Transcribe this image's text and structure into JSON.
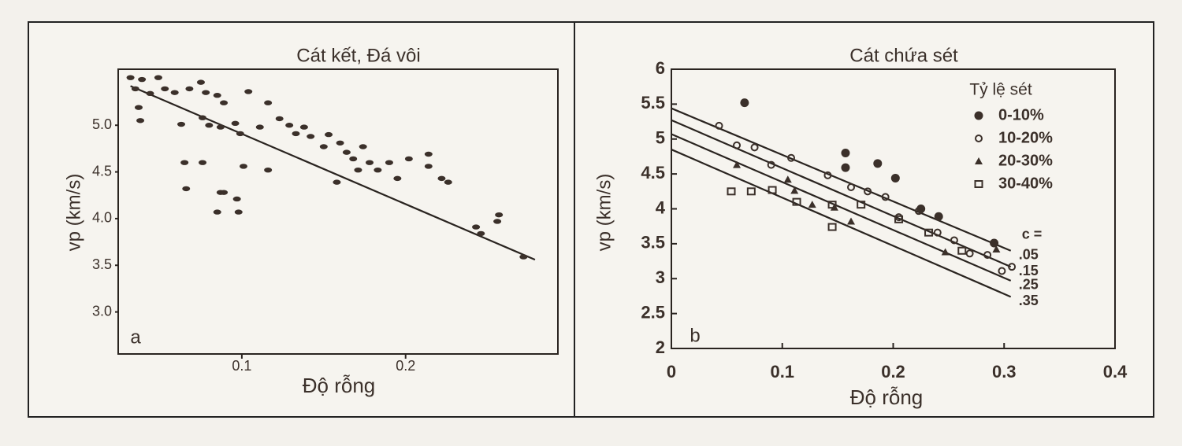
{
  "chart_data": [
    {
      "type": "scatter",
      "title": "Cát kết, Đá vôi",
      "xlabel": "Độ rỗng",
      "ylabel": "vp (km/s)",
      "panel_label": "a",
      "xlim": [
        0.0245,
        0.293
      ],
      "ylim": [
        2.55,
        5.6
      ],
      "xticks": [
        0.1,
        0.2
      ],
      "yticks": [
        {
          "value": 5,
          "label": "5.0"
        },
        {
          "value": 4.5,
          "label": "4.5"
        },
        {
          "value": 4,
          "label": "4.0"
        },
        {
          "value": 3.5,
          "label": "3.5"
        },
        {
          "value": 3,
          "label": "3.0"
        }
      ],
      "color": "#3b302a",
      "series": [
        {
          "marker": "filled-ellipse",
          "x": [
            0.032,
            0.039,
            0.049,
            0.035,
            0.044,
            0.053,
            0.059,
            0.068,
            0.075,
            0.078,
            0.085,
            0.089,
            0.037,
            0.038,
            0.063,
            0.076,
            0.08,
            0.087,
            0.096,
            0.099,
            0.104,
            0.111,
            0.116,
            0.123,
            0.129,
            0.133,
            0.138,
            0.142,
            0.15,
            0.153,
            0.16,
            0.164,
            0.168,
            0.174,
            0.178,
            0.183,
            0.19,
            0.195,
            0.202,
            0.214,
            0.222,
            0.226,
            0.214,
            0.065,
            0.076,
            0.087,
            0.097,
            0.101,
            0.116,
            0.066,
            0.085,
            0.098,
            0.158,
            0.171,
            0.243,
            0.246,
            0.257,
            0.256,
            0.272,
            0.089
          ],
          "values": [
            5.51,
            5.49,
            5.51,
            5.39,
            5.34,
            5.39,
            5.35,
            5.39,
            5.46,
            5.35,
            5.32,
            5.24,
            5.19,
            5.05,
            5.01,
            5.08,
            5.0,
            4.98,
            5.02,
            4.91,
            5.36,
            4.98,
            5.24,
            5.07,
            5.0,
            4.91,
            4.98,
            4.88,
            4.77,
            4.9,
            4.81,
            4.71,
            4.64,
            4.77,
            4.6,
            4.52,
            4.6,
            4.43,
            4.64,
            4.69,
            4.43,
            4.39,
            4.56,
            4.6,
            4.6,
            4.28,
            4.21,
            4.56,
            4.52,
            4.32,
            4.07,
            4.07,
            4.39,
            4.52,
            3.91,
            3.84,
            4.04,
            3.97,
            3.59,
            4.28
          ]
        }
      ],
      "lines": [
        {
          "x": [
            0.032,
            0.279
          ],
          "values": [
            5.42,
            3.56
          ]
        }
      ]
    },
    {
      "type": "scatter",
      "title": "Cát chứa sét",
      "xlabel": "Độ rỗng",
      "ylabel": "vp (km/s)",
      "panel_label": "b",
      "xlim": [
        0,
        0.4
      ],
      "ylim": [
        2,
        6
      ],
      "xticks": [
        0,
        0.1,
        0.2,
        0.3,
        0.4
      ],
      "yticks": [
        2,
        2.5,
        3,
        3.5,
        4,
        4.5,
        5,
        5.5,
        6
      ],
      "color": "#3b302a",
      "legend_title": "Tỷ lệ sét",
      "legend": "top-right",
      "series": [
        {
          "name": "0-10%",
          "marker": "filled-circle",
          "x": [
            0.066,
            0.157,
            0.157,
            0.186,
            0.202,
            0.225,
            0.241,
            0.291
          ],
          "values": [
            5.52,
            4.8,
            4.59,
            4.65,
            4.44,
            4.0,
            3.89,
            3.51
          ]
        },
        {
          "name": "10-20%",
          "marker": "open-circle",
          "x": [
            0.043,
            0.059,
            0.075,
            0.09,
            0.108,
            0.141,
            0.162,
            0.177,
            0.193,
            0.205,
            0.223,
            0.24,
            0.255,
            0.269,
            0.285,
            0.298,
            0.307
          ],
          "values": [
            5.19,
            4.91,
            4.88,
            4.63,
            4.73,
            4.48,
            4.31,
            4.25,
            4.17,
            3.88,
            3.97,
            3.66,
            3.55,
            3.36,
            3.34,
            3.11,
            3.17
          ]
        },
        {
          "name": "20-30%",
          "marker": "triangle",
          "x": [
            0.059,
            0.105,
            0.111,
            0.127,
            0.147,
            0.162,
            0.247,
            0.293
          ],
          "values": [
            4.63,
            4.42,
            4.26,
            4.06,
            4.02,
            3.82,
            3.38,
            3.42
          ]
        },
        {
          "name": "30-40%",
          "marker": "open-square",
          "x": [
            0.054,
            0.072,
            0.091,
            0.113,
            0.145,
            0.145,
            0.171,
            0.205,
            0.232,
            0.262
          ],
          "values": [
            4.25,
            4.25,
            4.27,
            4.1,
            4.06,
            3.74,
            4.06,
            3.85,
            3.66,
            3.4
          ]
        }
      ],
      "lines_title": "c =",
      "lines": [
        {
          "label": ".05",
          "x": [
            0,
            0.306
          ],
          "values": [
            5.44,
            3.4
          ]
        },
        {
          "label": ".15",
          "x": [
            0,
            0.306
          ],
          "values": [
            5.27,
            3.17
          ]
        },
        {
          "label": ".25",
          "x": [
            0,
            0.306
          ],
          "values": [
            5.07,
            2.97
          ]
        },
        {
          "label": ".35",
          "x": [
            0,
            0.306
          ],
          "values": [
            4.85,
            2.74
          ]
        }
      ]
    }
  ]
}
